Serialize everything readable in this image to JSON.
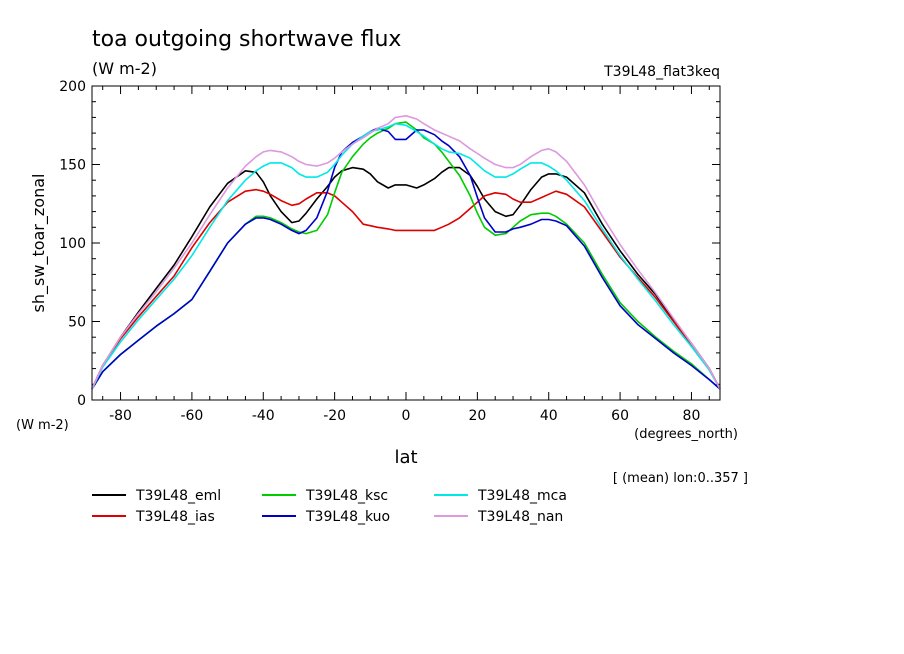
{
  "chart_data": {
    "type": "line",
    "title": "toa outgoing shortwave flux",
    "subtitle": "(W m-2)",
    "run_label": "T39L48_flat3keq",
    "ylabel": "sh_sw_toar_zonal",
    "yunits": "(W m-2)",
    "xlabel": "lat",
    "xunits": "(degrees_north)",
    "footnote": "[ (mean) lon:0..357 ]",
    "xlim": [
      -88,
      88
    ],
    "ylim": [
      0,
      200
    ],
    "xticks": [
      "-80",
      "-60",
      "-40",
      "-20",
      "0",
      "20",
      "40",
      "60",
      "80"
    ],
    "yticks": [
      "0",
      "50",
      "100",
      "150",
      "200"
    ],
    "grid": false,
    "legend_position": "bottom",
    "x": [
      -88,
      -85,
      -80,
      -75,
      -70,
      -65,
      -60,
      -55,
      -50,
      -45,
      -42,
      -40,
      -38,
      -35,
      -32,
      -30,
      -28,
      -25,
      -22,
      -20,
      -18,
      -15,
      -12,
      -10,
      -8,
      -5,
      -3,
      0,
      3,
      5,
      8,
      10,
      12,
      15,
      18,
      20,
      22,
      25,
      28,
      30,
      32,
      35,
      38,
      40,
      42,
      45,
      50,
      55,
      60,
      65,
      70,
      75,
      80,
      85,
      88
    ],
    "series": [
      {
        "name": "T39L48_eml",
        "color": "#000000",
        "values": [
          7,
          22,
          40,
          56,
          71,
          86,
          104,
          123,
          138,
          146,
          145,
          139,
          130,
          120,
          113,
          114,
          119,
          128,
          136,
          142,
          146,
          148,
          147,
          144,
          139,
          135,
          137,
          137,
          135,
          137,
          141,
          145,
          148,
          148,
          143,
          136,
          128,
          120,
          117,
          118,
          124,
          134,
          142,
          144,
          144,
          142,
          132,
          112,
          95,
          80,
          67,
          51,
          36,
          20,
          7
        ]
      },
      {
        "name": "T39L48_ias",
        "color": "#dd0000",
        "values": [
          7,
          22,
          39,
          53,
          66,
          79,
          97,
          113,
          126,
          133,
          134,
          133,
          131,
          127,
          124,
          125,
          128,
          132,
          132,
          130,
          126,
          120,
          112,
          111,
          110,
          109,
          108,
          108,
          108,
          108,
          108,
          110,
          112,
          116,
          122,
          126,
          130,
          132,
          131,
          128,
          126,
          126,
          129,
          131,
          133,
          131,
          123,
          107,
          91,
          78,
          65,
          50,
          35,
          20,
          7
        ]
      },
      {
        "name": "T39L48_ksc",
        "color": "#00cc00",
        "values": [
          7,
          18,
          29,
          38,
          47,
          55,
          64,
          82,
          100,
          112,
          117,
          117,
          116,
          113,
          109,
          107,
          106,
          108,
          118,
          132,
          145,
          155,
          163,
          167,
          170,
          173,
          176,
          177,
          172,
          167,
          163,
          158,
          152,
          143,
          130,
          119,
          110,
          105,
          106,
          110,
          114,
          118,
          119,
          119,
          117,
          112,
          100,
          80,
          62,
          50,
          40,
          31,
          23,
          13,
          7
        ]
      },
      {
        "name": "T39L48_kuo",
        "color": "#0000cc",
        "values": [
          7,
          18,
          29,
          38,
          47,
          55,
          64,
          82,
          100,
          112,
          116,
          116,
          115,
          112,
          108,
          106,
          108,
          116,
          133,
          148,
          158,
          164,
          168,
          171,
          173,
          171,
          166,
          166,
          172,
          172,
          169,
          165,
          162,
          155,
          143,
          129,
          116,
          107,
          107,
          109,
          110,
          112,
          115,
          115,
          114,
          111,
          98,
          78,
          60,
          48,
          39,
          30,
          22,
          13,
          7
        ]
      },
      {
        "name": "T39L48_mca",
        "color": "#00e8e8",
        "values": [
          7,
          21,
          37,
          51,
          64,
          77,
          92,
          110,
          127,
          140,
          146,
          149,
          151,
          151,
          148,
          144,
          142,
          142,
          145,
          150,
          156,
          163,
          168,
          171,
          172,
          174,
          176,
          175,
          171,
          168,
          163,
          160,
          158,
          157,
          154,
          150,
          146,
          142,
          142,
          144,
          147,
          151,
          151,
          149,
          146,
          140,
          127,
          109,
          92,
          77,
          63,
          48,
          34,
          19,
          7
        ]
      },
      {
        "name": "T39L48_nan",
        "color": "#dd99dd",
        "values": [
          7,
          22,
          40,
          55,
          69,
          84,
          100,
          118,
          135,
          149,
          155,
          158,
          159,
          158,
          155,
          152,
          150,
          149,
          151,
          154,
          158,
          163,
          167,
          170,
          173,
          176,
          180,
          181,
          179,
          176,
          172,
          170,
          168,
          165,
          160,
          157,
          154,
          150,
          148,
          148,
          150,
          155,
          159,
          160,
          158,
          152,
          137,
          117,
          99,
          83,
          68,
          52,
          36,
          20,
          7
        ]
      }
    ]
  }
}
